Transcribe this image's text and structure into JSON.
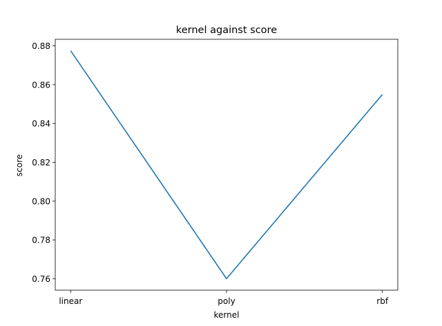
{
  "chart_data": {
    "type": "line",
    "title": "kernel against score",
    "xlabel": "kernel",
    "ylabel": "score",
    "categories": [
      "linear",
      "poly",
      "rbf"
    ],
    "series": [
      {
        "values": [
          0.8775,
          0.76,
          0.855
        ],
        "color": "#1f77b4"
      }
    ],
    "ylim": [
      0.7541,
      0.8834
    ],
    "yticks": [
      0.76,
      0.78,
      0.8,
      0.82,
      0.84,
      0.86,
      0.88
    ],
    "ytick_labels": [
      "0.76",
      "0.78",
      "0.80",
      "0.82",
      "0.84",
      "0.86",
      "0.88"
    ],
    "grid": false,
    "legend": "none"
  }
}
